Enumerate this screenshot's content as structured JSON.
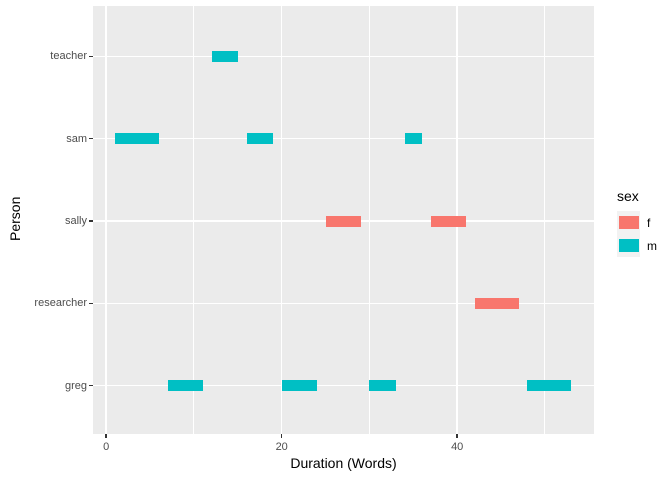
{
  "chart_data": {
    "type": "bar",
    "subtype": "horizontal-interval-segments (gantt-style, ggplot2 theme)",
    "title": "",
    "xlabel": "Duration (Words)",
    "ylabel": "Person",
    "categories_top_to_bottom": [
      "teacher",
      "sam",
      "sally",
      "researcher",
      "greg"
    ],
    "x_major_ticks": [
      0,
      20,
      40
    ],
    "x_minor_gridlines": [
      10,
      30,
      50
    ],
    "xlim": [
      -1.5,
      55.6
    ],
    "grid": "white major+minor on gray panel",
    "legend_position": "right",
    "legend": {
      "title": "sex",
      "entries": [
        {
          "label": "f",
          "color": "#F8766D"
        },
        {
          "label": "m",
          "color": "#00BFC4"
        }
      ]
    },
    "series": [
      {
        "name": "f",
        "color": "#F8766D",
        "segments": [
          {
            "person": "sally",
            "start": 25,
            "end": 29
          },
          {
            "person": "sally",
            "start": 37,
            "end": 41
          },
          {
            "person": "researcher",
            "start": 42,
            "end": 47
          }
        ]
      },
      {
        "name": "m",
        "color": "#00BFC4",
        "segments": [
          {
            "person": "teacher",
            "start": 12,
            "end": 15
          },
          {
            "person": "sam",
            "start": 1,
            "end": 6
          },
          {
            "person": "sam",
            "start": 16,
            "end": 19
          },
          {
            "person": "sam",
            "start": 34,
            "end": 36
          },
          {
            "person": "greg",
            "start": 7,
            "end": 11
          },
          {
            "person": "greg",
            "start": 20,
            "end": 24
          },
          {
            "person": "greg",
            "start": 30,
            "end": 33
          },
          {
            "person": "greg",
            "start": 48,
            "end": 53
          }
        ]
      }
    ],
    "colors": {
      "panel_background": "#EBEBEB",
      "gridline": "#FFFFFF",
      "axis_text": "#4D4D4D",
      "axis_title": "#000000",
      "tick_mark": "#333333",
      "legend_key_background": "#F2F2F2"
    }
  }
}
